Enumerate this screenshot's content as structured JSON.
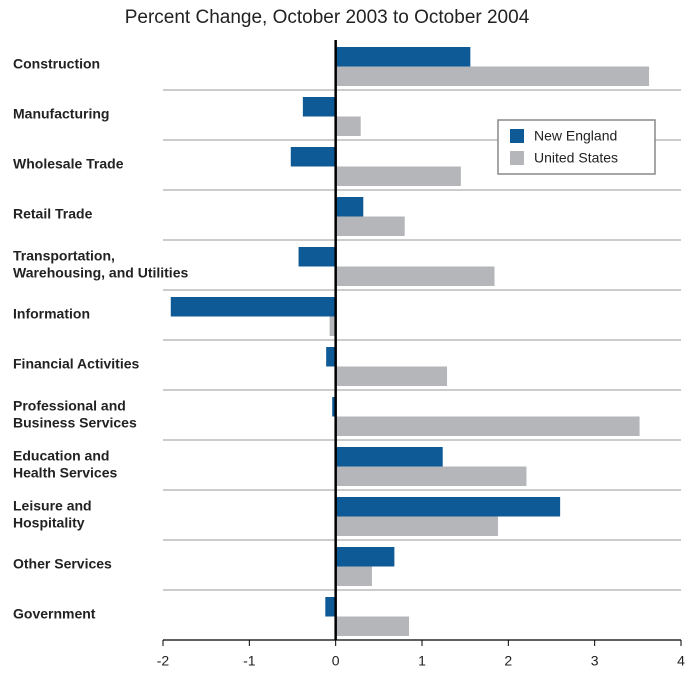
{
  "chart_data": {
    "type": "hbar",
    "title": "Percent Change, October 2003 to October 2004",
    "categories": [
      "Construction",
      "Manufacturing",
      "Wholesale Trade",
      "Retail Trade",
      "Transportation,\nWarehousing, and Utilities",
      "Information",
      "Financial Activities",
      "Professional and\nBusiness Services",
      "Education and\nHealth Services",
      "Leisure and\nHospitality",
      "Other Services",
      "Government"
    ],
    "series": [
      {
        "name": "New England",
        "color": "#0e5a96",
        "values": [
          1.56,
          -0.38,
          -0.52,
          0.32,
          -0.43,
          -1.91,
          -0.11,
          -0.04,
          1.24,
          2.6,
          0.68,
          -0.12
        ]
      },
      {
        "name": "United States",
        "color": "#b5b6ba",
        "values": [
          3.63,
          0.29,
          1.45,
          0.8,
          1.84,
          -0.07,
          1.29,
          3.52,
          2.21,
          1.88,
          0.42,
          0.85
        ]
      }
    ],
    "xlim": [
      -2,
      4
    ],
    "xticks": [
      -2,
      -1,
      0,
      1,
      2,
      3,
      4
    ],
    "legend": "upper right"
  }
}
